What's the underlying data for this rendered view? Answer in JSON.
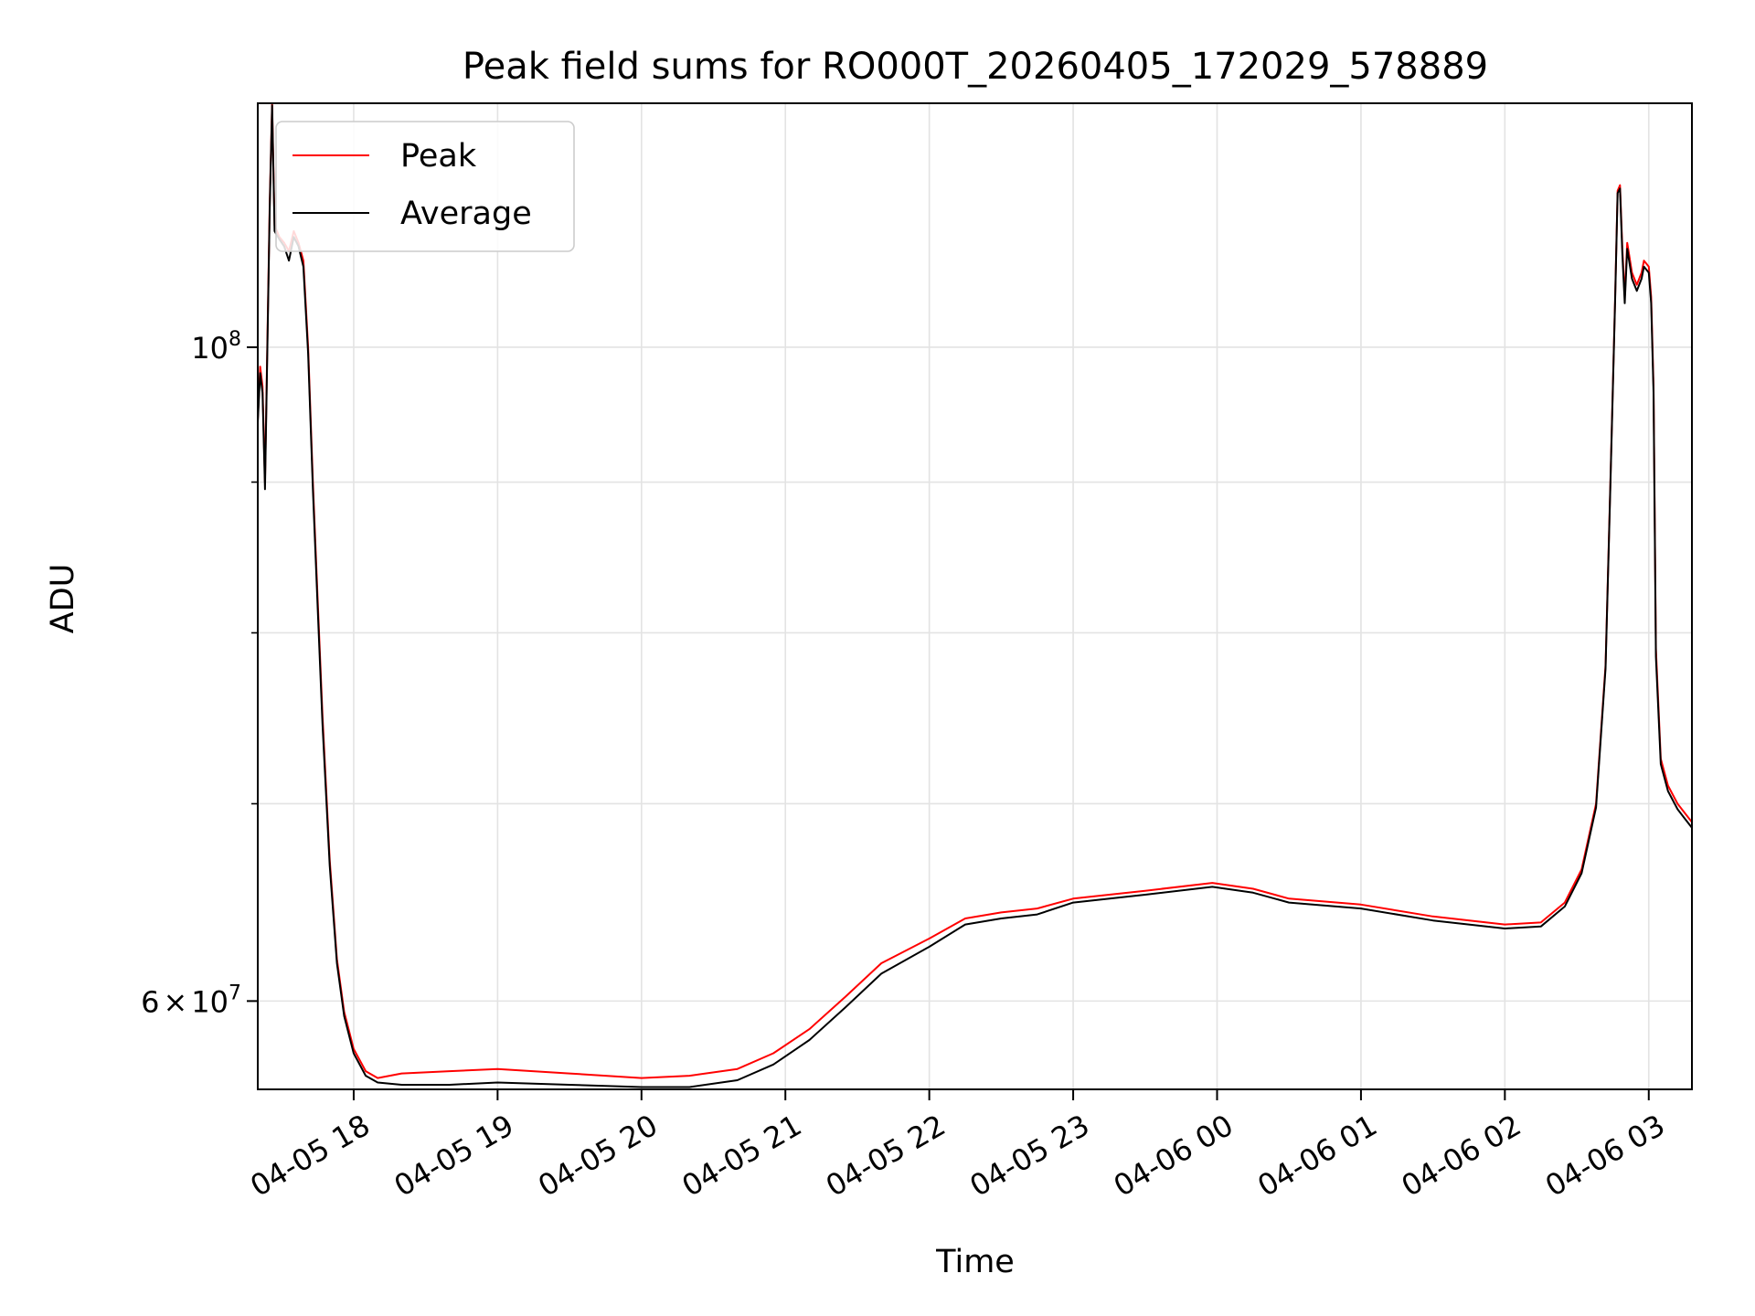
{
  "chart_data": {
    "type": "line",
    "title": "Peak field sums for RO000T_20260405_172029_578889",
    "xlabel": "Time",
    "ylabel": "ADU",
    "y_scale": "log",
    "grid": true,
    "legend_position": "top-left",
    "xlim": [
      "2026-04-05 17:20",
      "2026-04-06 03:18"
    ],
    "ylim": [
      56000000,
      121000000
    ],
    "x_ticks": [
      {
        "t": "2026-04-05 18:00",
        "label": "04-05 18"
      },
      {
        "t": "2026-04-05 19:00",
        "label": "04-05 19"
      },
      {
        "t": "2026-04-05 20:00",
        "label": "04-05 20"
      },
      {
        "t": "2026-04-05 21:00",
        "label": "04-05 21"
      },
      {
        "t": "2026-04-05 22:00",
        "label": "04-05 22"
      },
      {
        "t": "2026-04-05 23:00",
        "label": "04-05 23"
      },
      {
        "t": "2026-04-06 00:00",
        "label": "04-06 00"
      },
      {
        "t": "2026-04-06 01:00",
        "label": "04-06 01"
      },
      {
        "t": "2026-04-06 02:00",
        "label": "04-06 02"
      },
      {
        "t": "2026-04-06 03:00",
        "label": "04-06 03"
      }
    ],
    "y_major_ticks": [
      {
        "value": 60000000,
        "base": "6",
        "op": "×",
        "mant": "10",
        "exp": "7"
      },
      {
        "value": 100000000,
        "base": "",
        "op": "",
        "mant": "10",
        "exp": "8"
      }
    ],
    "y_minor_ticks": [
      70000000,
      80000000,
      90000000
    ],
    "series": [
      {
        "name": "Peak",
        "color": "#ff0000",
        "points": [
          [
            "2026-04-05 17:20",
            94500000
          ],
          [
            "2026-04-05 17:21",
            98500000
          ],
          [
            "2026-04-05 17:22",
            97000000
          ],
          [
            "2026-04-05 17:23",
            90000000
          ],
          [
            "2026-04-05 17:25",
            112000000
          ],
          [
            "2026-04-05 17:26",
            121000000
          ],
          [
            "2026-04-05 17:27",
            110000000
          ],
          [
            "2026-04-05 17:29",
            109000000
          ],
          [
            "2026-04-05 17:31",
            108500000
          ],
          [
            "2026-04-05 17:33",
            107800000
          ],
          [
            "2026-04-05 17:35",
            109500000
          ],
          [
            "2026-04-05 17:37",
            108500000
          ],
          [
            "2026-04-05 17:39",
            107000000
          ],
          [
            "2026-04-05 17:41",
            100000000
          ],
          [
            "2026-04-05 17:43",
            90000000
          ],
          [
            "2026-04-05 17:45",
            82000000
          ],
          [
            "2026-04-05 17:47",
            75000000
          ],
          [
            "2026-04-05 17:50",
            67000000
          ],
          [
            "2026-04-05 17:53",
            62000000
          ],
          [
            "2026-04-05 17:56",
            59500000
          ],
          [
            "2026-04-05 18:00",
            57800000
          ],
          [
            "2026-04-05 18:05",
            56800000
          ],
          [
            "2026-04-05 18:10",
            56500000
          ],
          [
            "2026-04-05 18:20",
            56700000
          ],
          [
            "2026-04-05 18:40",
            56800000
          ],
          [
            "2026-04-05 19:00",
            56900000
          ],
          [
            "2026-04-05 19:30",
            56700000
          ],
          [
            "2026-04-05 20:00",
            56500000
          ],
          [
            "2026-04-05 20:20",
            56600000
          ],
          [
            "2026-04-05 20:40",
            56900000
          ],
          [
            "2026-04-05 20:55",
            57600000
          ],
          [
            "2026-04-05 21:10",
            58700000
          ],
          [
            "2026-04-05 21:25",
            60200000
          ],
          [
            "2026-04-05 21:40",
            61800000
          ],
          [
            "2026-04-05 22:00",
            63000000
          ],
          [
            "2026-04-05 22:15",
            64000000
          ],
          [
            "2026-04-05 22:30",
            64300000
          ],
          [
            "2026-04-05 22:45",
            64500000
          ],
          [
            "2026-04-05 23:00",
            65000000
          ],
          [
            "2026-04-05 23:30",
            65400000
          ],
          [
            "2026-04-05 23:58",
            65800000
          ],
          [
            "2026-04-06 00:15",
            65500000
          ],
          [
            "2026-04-06 00:30",
            65000000
          ],
          [
            "2026-04-06 01:00",
            64700000
          ],
          [
            "2026-04-06 01:30",
            64100000
          ],
          [
            "2026-04-06 02:00",
            63700000
          ],
          [
            "2026-04-06 02:15",
            63800000
          ],
          [
            "2026-04-06 02:25",
            64800000
          ],
          [
            "2026-04-06 02:32",
            66500000
          ],
          [
            "2026-04-06 02:38",
            70000000
          ],
          [
            "2026-04-06 02:42",
            78000000
          ],
          [
            "2026-04-06 02:44",
            90000000
          ],
          [
            "2026-04-06 02:46",
            104000000
          ],
          [
            "2026-04-06 02:47",
            113000000
          ],
          [
            "2026-04-06 02:48",
            113500000
          ],
          [
            "2026-04-06 02:49",
            108000000
          ],
          [
            "2026-04-06 02:50",
            104000000
          ],
          [
            "2026-04-06 02:51",
            108500000
          ],
          [
            "2026-04-06 02:53",
            106000000
          ],
          [
            "2026-04-06 02:55",
            105000000
          ],
          [
            "2026-04-06 02:57",
            106000000
          ],
          [
            "2026-04-06 02:58",
            107000000
          ],
          [
            "2026-04-06 03:00",
            106500000
          ],
          [
            "2026-04-06 03:01",
            104000000
          ],
          [
            "2026-04-06 03:02",
            97000000
          ],
          [
            "2026-04-06 03:03",
            79000000
          ],
          [
            "2026-04-06 03:05",
            72500000
          ],
          [
            "2026-04-06 03:08",
            71000000
          ],
          [
            "2026-04-06 03:12",
            70000000
          ],
          [
            "2026-04-06 03:15",
            69500000
          ],
          [
            "2026-04-06 03:18",
            69000000
          ]
        ]
      },
      {
        "name": "Average",
        "color": "#000000",
        "points": [
          [
            "2026-04-05 17:20",
            94300000
          ],
          [
            "2026-04-05 17:21",
            98000000
          ],
          [
            "2026-04-05 17:22",
            96500000
          ],
          [
            "2026-04-05 17:23",
            89500000
          ],
          [
            "2026-04-05 17:25",
            111500000
          ],
          [
            "2026-04-05 17:26",
            120800000
          ],
          [
            "2026-04-05 17:27",
            109500000
          ],
          [
            "2026-04-05 17:29",
            108800000
          ],
          [
            "2026-04-05 17:31",
            108200000
          ],
          [
            "2026-04-05 17:33",
            107000000
          ],
          [
            "2026-04-05 17:35",
            109000000
          ],
          [
            "2026-04-05 17:37",
            108200000
          ],
          [
            "2026-04-05 17:39",
            106500000
          ],
          [
            "2026-04-05 17:41",
            99500000
          ],
          [
            "2026-04-05 17:43",
            89500000
          ],
          [
            "2026-04-05 17:45",
            81500000
          ],
          [
            "2026-04-05 17:47",
            74500000
          ],
          [
            "2026-04-05 17:50",
            66700000
          ],
          [
            "2026-04-05 17:53",
            61800000
          ],
          [
            "2026-04-05 17:56",
            59300000
          ],
          [
            "2026-04-05 18:00",
            57600000
          ],
          [
            "2026-04-05 18:05",
            56600000
          ],
          [
            "2026-04-05 18:10",
            56300000
          ],
          [
            "2026-04-05 18:20",
            56200000
          ],
          [
            "2026-04-05 18:40",
            56200000
          ],
          [
            "2026-04-05 19:00",
            56300000
          ],
          [
            "2026-04-05 19:30",
            56200000
          ],
          [
            "2026-04-05 20:00",
            56100000
          ],
          [
            "2026-04-05 20:20",
            56100000
          ],
          [
            "2026-04-05 20:40",
            56400000
          ],
          [
            "2026-04-05 20:55",
            57100000
          ],
          [
            "2026-04-05 21:10",
            58200000
          ],
          [
            "2026-04-05 21:25",
            59700000
          ],
          [
            "2026-04-05 21:40",
            61300000
          ],
          [
            "2026-04-05 22:00",
            62600000
          ],
          [
            "2026-04-05 22:15",
            63700000
          ],
          [
            "2026-04-05 22:30",
            64000000
          ],
          [
            "2026-04-05 22:45",
            64200000
          ],
          [
            "2026-04-05 23:00",
            64800000
          ],
          [
            "2026-04-05 23:30",
            65200000
          ],
          [
            "2026-04-05 23:58",
            65600000
          ],
          [
            "2026-04-06 00:15",
            65300000
          ],
          [
            "2026-04-06 00:30",
            64800000
          ],
          [
            "2026-04-06 01:00",
            64500000
          ],
          [
            "2026-04-06 01:30",
            63900000
          ],
          [
            "2026-04-06 02:00",
            63500000
          ],
          [
            "2026-04-06 02:15",
            63600000
          ],
          [
            "2026-04-06 02:25",
            64600000
          ],
          [
            "2026-04-06 02:32",
            66300000
          ],
          [
            "2026-04-06 02:38",
            69800000
          ],
          [
            "2026-04-06 02:42",
            77800000
          ],
          [
            "2026-04-06 02:44",
            89800000
          ],
          [
            "2026-04-06 02:46",
            103800000
          ],
          [
            "2026-04-06 02:47",
            112800000
          ],
          [
            "2026-04-06 02:48",
            113200000
          ],
          [
            "2026-04-06 02:49",
            107500000
          ],
          [
            "2026-04-06 02:50",
            103500000
          ],
          [
            "2026-04-06 02:51",
            108000000
          ],
          [
            "2026-04-06 02:53",
            105500000
          ],
          [
            "2026-04-06 02:55",
            104500000
          ],
          [
            "2026-04-06 02:57",
            105500000
          ],
          [
            "2026-04-06 02:58",
            106500000
          ],
          [
            "2026-04-06 03:00",
            106000000
          ],
          [
            "2026-04-06 03:01",
            103500000
          ],
          [
            "2026-04-06 03:02",
            96500000
          ],
          [
            "2026-04-06 03:03",
            78500000
          ],
          [
            "2026-04-06 03:05",
            72200000
          ],
          [
            "2026-04-06 03:08",
            70700000
          ],
          [
            "2026-04-06 03:12",
            69700000
          ],
          [
            "2026-04-06 03:15",
            69200000
          ],
          [
            "2026-04-06 03:18",
            68700000
          ]
        ]
      }
    ]
  }
}
